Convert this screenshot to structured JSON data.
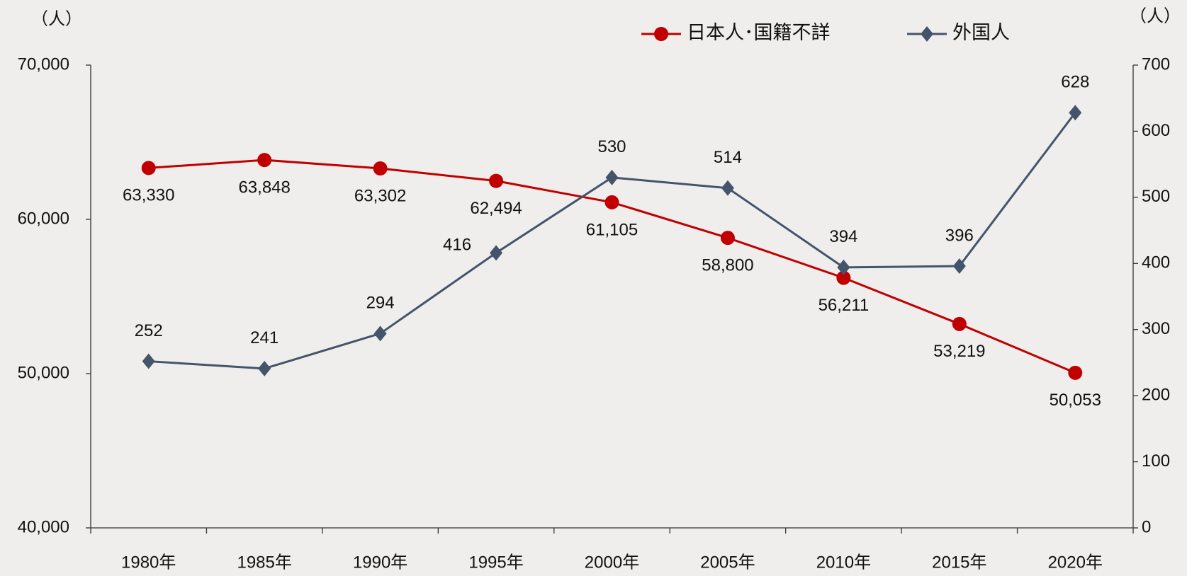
{
  "chart_data": {
    "type": "line",
    "y_unit": "（人）",
    "y2_unit": "（人）",
    "categories": [
      "1980年",
      "1985年",
      "1990年",
      "1995年",
      "2000年",
      "2005年",
      "2010年",
      "2015年",
      "2020年"
    ],
    "series": [
      {
        "name": "日本人･国籍不詳",
        "color": "#c00000",
        "marker": "circle",
        "values": [
          63330,
          63848,
          63302,
          62494,
          61105,
          58800,
          56211,
          53219,
          50053
        ],
        "value_labels": [
          "63,330",
          "63,848",
          "63,302",
          "62,494",
          "61,105",
          "58,800",
          "56,211",
          "53,219",
          "50,053"
        ]
      },
      {
        "name": "外国人",
        "color": "#44546a",
        "marker": "diamond",
        "axis": "y2",
        "values": [
          252,
          241,
          294,
          416,
          530,
          514,
          394,
          396,
          628
        ]
      }
    ],
    "ylim": [
      40000,
      70000
    ],
    "yticks": [
      {
        "value": 40000,
        "label": "40,000"
      },
      {
        "value": 50000,
        "label": "50,000"
      },
      {
        "value": 60000,
        "label": "60,000"
      },
      {
        "value": 70000,
        "label": "70,000"
      }
    ],
    "y2lim": [
      0,
      700
    ],
    "y2ticks": [
      0,
      100,
      200,
      300,
      400,
      500,
      600,
      700
    ],
    "legend": "top"
  }
}
